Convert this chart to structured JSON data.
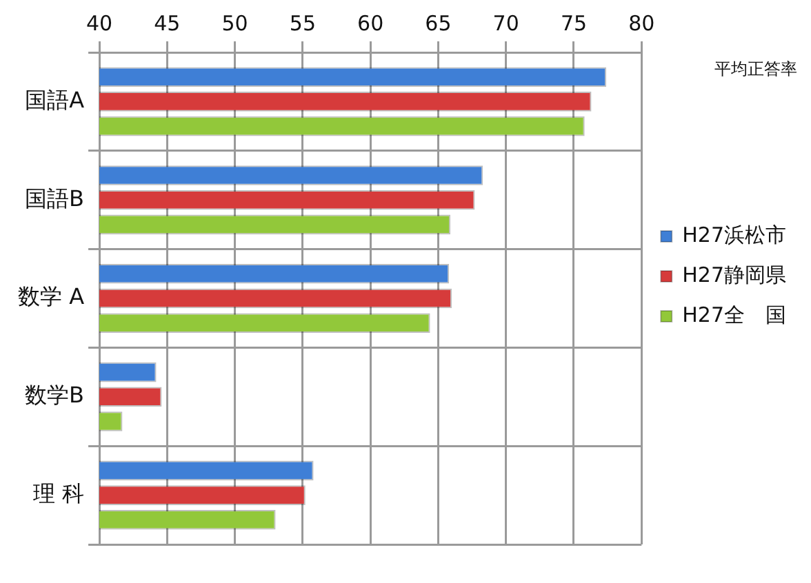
{
  "chart_data": {
    "type": "bar",
    "orientation": "horizontal",
    "categories": [
      "国語A",
      "国語B",
      "数学 A",
      "数学B",
      "理 科"
    ],
    "series": [
      {
        "name": "H27浜松市",
        "color": "#3f7fd6",
        "values": [
          77.4,
          68.3,
          65.8,
          44.2,
          55.8
        ]
      },
      {
        "name": "H27静岡県",
        "color": "#d63b3b",
        "values": [
          76.3,
          67.7,
          66.0,
          44.6,
          55.2
        ]
      },
      {
        "name": "H27全　国",
        "color": "#92c83a",
        "values": [
          75.8,
          65.9,
          64.4,
          41.7,
          53.0
        ]
      }
    ],
    "xlim": [
      40,
      80
    ],
    "xticks": [
      40,
      45,
      50,
      55,
      60,
      65,
      70,
      75,
      80
    ],
    "grid": true,
    "legend": "right",
    "annotations": [
      "平均正答率"
    ]
  }
}
